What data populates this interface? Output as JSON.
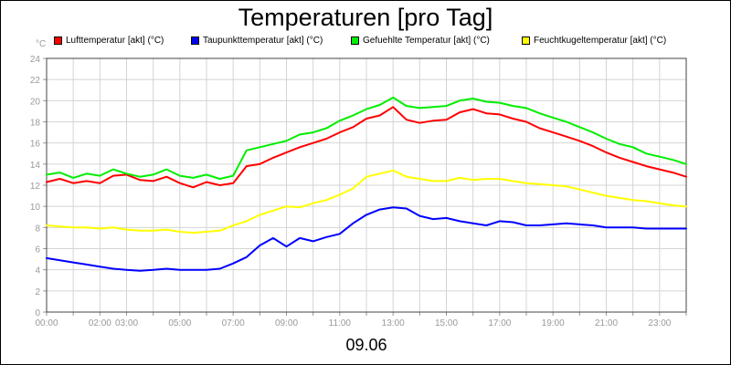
{
  "chart_data": {
    "type": "line",
    "title": "Temperaturen [pro Tag]",
    "date_label": "09.06",
    "y_unit": "°C",
    "ylim": [
      0,
      24
    ],
    "y_ticks": [
      "0",
      "2",
      "4",
      "6",
      "8",
      "10",
      "12",
      "14",
      "16",
      "18",
      "20",
      "22",
      "24"
    ],
    "xlim": [
      0,
      24
    ],
    "x_ticks": [
      {
        "pos": 0,
        "label": "00:00"
      },
      {
        "pos": 2,
        "label": "02:00"
      },
      {
        "pos": 3,
        "label": "03:00"
      },
      {
        "pos": 5,
        "label": "05:00"
      },
      {
        "pos": 7,
        "label": "07:00"
      },
      {
        "pos": 9,
        "label": "09:00"
      },
      {
        "pos": 11,
        "label": "11:00"
      },
      {
        "pos": 13,
        "label": "13:00"
      },
      {
        "pos": 15,
        "label": "15:00"
      },
      {
        "pos": 17,
        "label": "17:00"
      },
      {
        "pos": 19,
        "label": "19:00"
      },
      {
        "pos": 21,
        "label": "21:00"
      },
      {
        "pos": 23,
        "label": "23:00"
      }
    ],
    "grid": true,
    "x": [
      0,
      0.5,
      1,
      1.5,
      2,
      2.5,
      3,
      3.5,
      4,
      4.5,
      5,
      5.5,
      6,
      6.5,
      7,
      7.5,
      8,
      8.5,
      9,
      9.5,
      10,
      10.5,
      11,
      11.5,
      12,
      12.5,
      13,
      13.5,
      14,
      14.5,
      15,
      15.5,
      16,
      16.5,
      17,
      17.5,
      18,
      18.5,
      19,
      19.5,
      20,
      20.5,
      21,
      21.5,
      22,
      22.5,
      23,
      23.5,
      24
    ],
    "series": [
      {
        "name": "Lufttemperatur [akt] (°C)",
        "color": "#ff0000",
        "values": [
          12.3,
          12.6,
          12.2,
          12.4,
          12.2,
          12.9,
          13.0,
          12.5,
          12.4,
          12.8,
          12.2,
          11.8,
          12.3,
          12.0,
          12.2,
          13.8,
          14.0,
          14.6,
          15.1,
          15.6,
          16.0,
          16.4,
          17.0,
          17.5,
          18.3,
          18.6,
          19.4,
          18.2,
          17.9,
          18.1,
          18.2,
          18.9,
          19.2,
          18.8,
          18.7,
          18.3,
          18.0,
          17.4,
          17.0,
          16.6,
          16.2,
          15.7,
          15.1,
          14.6,
          14.2,
          13.8,
          13.5,
          13.2,
          12.8
        ]
      },
      {
        "name": "Taupunkttemperatur [akt] (°C)",
        "color": "#0000ff",
        "values": [
          5.1,
          4.9,
          4.7,
          4.5,
          4.3,
          4.1,
          4.0,
          3.9,
          4.0,
          4.1,
          4.0,
          4.0,
          4.0,
          4.1,
          4.6,
          5.2,
          6.3,
          7.0,
          6.2,
          7.0,
          6.7,
          7.1,
          7.4,
          8.4,
          9.2,
          9.7,
          9.9,
          9.8,
          9.1,
          8.8,
          8.9,
          8.6,
          8.4,
          8.2,
          8.6,
          8.5,
          8.2,
          8.2,
          8.3,
          8.4,
          8.3,
          8.2,
          8.0,
          8.0,
          8.0,
          7.9,
          7.9,
          7.9,
          7.9
        ]
      },
      {
        "name": "Gefuehlte Temperatur [akt] (°C)",
        "color": "#00ee00",
        "values": [
          13.0,
          13.2,
          12.7,
          13.1,
          12.9,
          13.5,
          13.1,
          12.8,
          13.0,
          13.5,
          12.9,
          12.7,
          13.0,
          12.6,
          12.9,
          15.3,
          15.6,
          15.9,
          16.2,
          16.8,
          17.0,
          17.4,
          18.1,
          18.6,
          19.2,
          19.6,
          20.3,
          19.5,
          19.3,
          19.4,
          19.5,
          20.0,
          20.2,
          19.9,
          19.8,
          19.5,
          19.3,
          18.8,
          18.4,
          18.0,
          17.5,
          17.0,
          16.4,
          15.9,
          15.6,
          15.0,
          14.7,
          14.4,
          14.0
        ]
      },
      {
        "name": "Feuchtkugeltemperatur [akt] (°C)",
        "color": "#ffff00",
        "values": [
          8.2,
          8.1,
          8.0,
          8.0,
          7.9,
          8.0,
          7.8,
          7.7,
          7.7,
          7.8,
          7.6,
          7.5,
          7.6,
          7.7,
          8.2,
          8.6,
          9.2,
          9.6,
          10.0,
          9.9,
          10.3,
          10.6,
          11.1,
          11.7,
          12.8,
          13.1,
          13.4,
          12.8,
          12.6,
          12.4,
          12.4,
          12.7,
          12.5,
          12.6,
          12.6,
          12.4,
          12.2,
          12.1,
          12.0,
          11.9,
          11.6,
          11.3,
          11.0,
          10.8,
          10.6,
          10.5,
          10.3,
          10.1,
          10.0
        ]
      }
    ]
  }
}
